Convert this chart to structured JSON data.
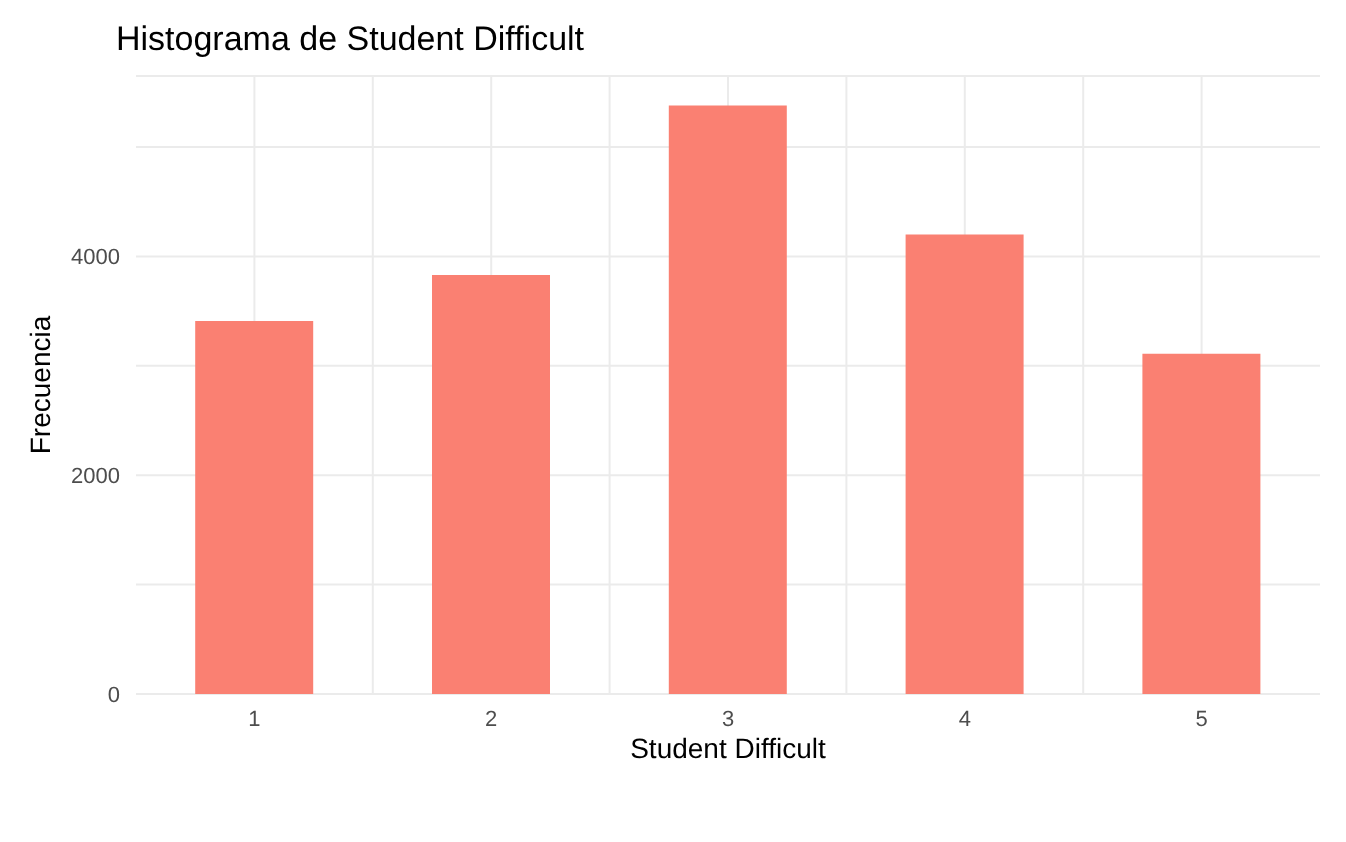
{
  "chart_data": {
    "type": "bar",
    "title": "Histograma de Student Difficult",
    "xlabel": "Student Difficult",
    "ylabel": "Frecuencia",
    "categories": [
      "1",
      "2",
      "3",
      "4",
      "5"
    ],
    "values": [
      3410,
      3830,
      5380,
      4200,
      3110
    ],
    "color": "#fa8072",
    "ylim": [
      0,
      5650
    ],
    "yticks": [
      0,
      {
        "value": 1000,
        "label": null
      },
      2000,
      {
        "value": 3000,
        "label": null
      },
      4000,
      {
        "value": 5000,
        "label": null
      }
    ],
    "grid": true
  }
}
